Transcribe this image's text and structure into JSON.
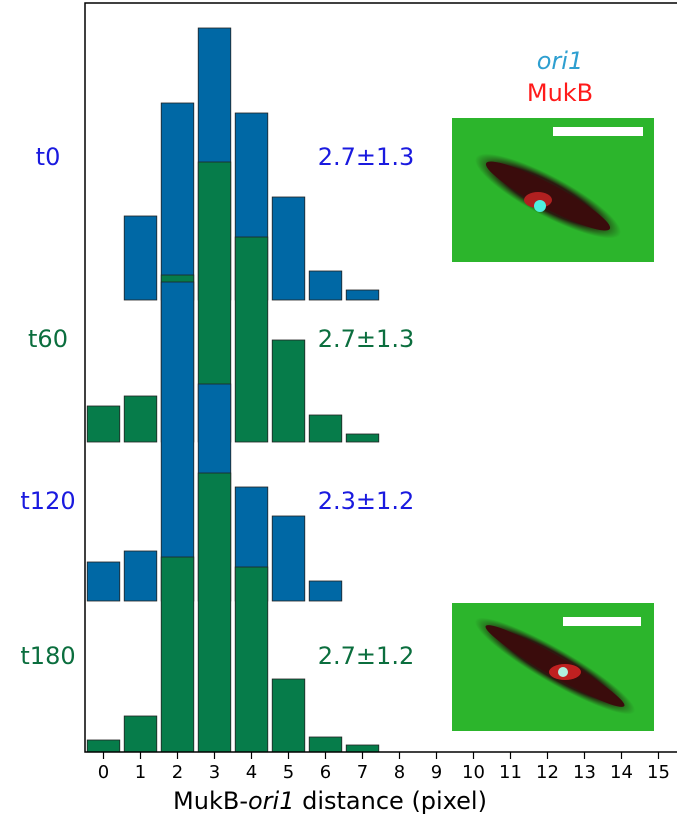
{
  "chart_data": {
    "type": "histogram-stack",
    "x": [
      0,
      1,
      2,
      3,
      4,
      5,
      6,
      7
    ],
    "xlim": [
      -0.5,
      15.5
    ],
    "xticks": [
      0,
      1,
      2,
      3,
      4,
      5,
      6,
      7,
      8,
      9,
      10,
      11,
      12,
      13,
      14,
      15
    ],
    "xlabel": [
      "MukB-",
      "ori1",
      " distance (pixel)"
    ],
    "legend": [
      {
        "name": "ori1",
        "color": "#2e9fd0"
      },
      {
        "name": "MukB",
        "color": "#ff1a1a"
      }
    ],
    "series": [
      {
        "name": "t0",
        "color": "#0068a5",
        "stat": "2.7±1.3",
        "label_color": "#1a1adf",
        "values": [
          null,
          84,
          197,
          272,
          187,
          103,
          29,
          10
        ]
      },
      {
        "name": "t60",
        "color": "#067c4a",
        "stat": "2.7±1.3",
        "label_color": "#0b6e3e",
        "values": [
          36,
          46,
          167,
          280,
          205,
          102,
          27,
          8
        ]
      },
      {
        "name": "t120",
        "color": "#0068a5",
        "stat": "2.3±1.2",
        "label_color": "#1a1adf",
        "values": [
          39,
          50,
          319,
          217,
          114,
          85,
          20,
          null
        ]
      },
      {
        "name": "t180",
        "color": "#067c4a",
        "stat": "2.7±1.2",
        "label_color": "#0b6e3e",
        "values": [
          12,
          36,
          195,
          279,
          185,
          73,
          15,
          7
        ]
      }
    ]
  }
}
